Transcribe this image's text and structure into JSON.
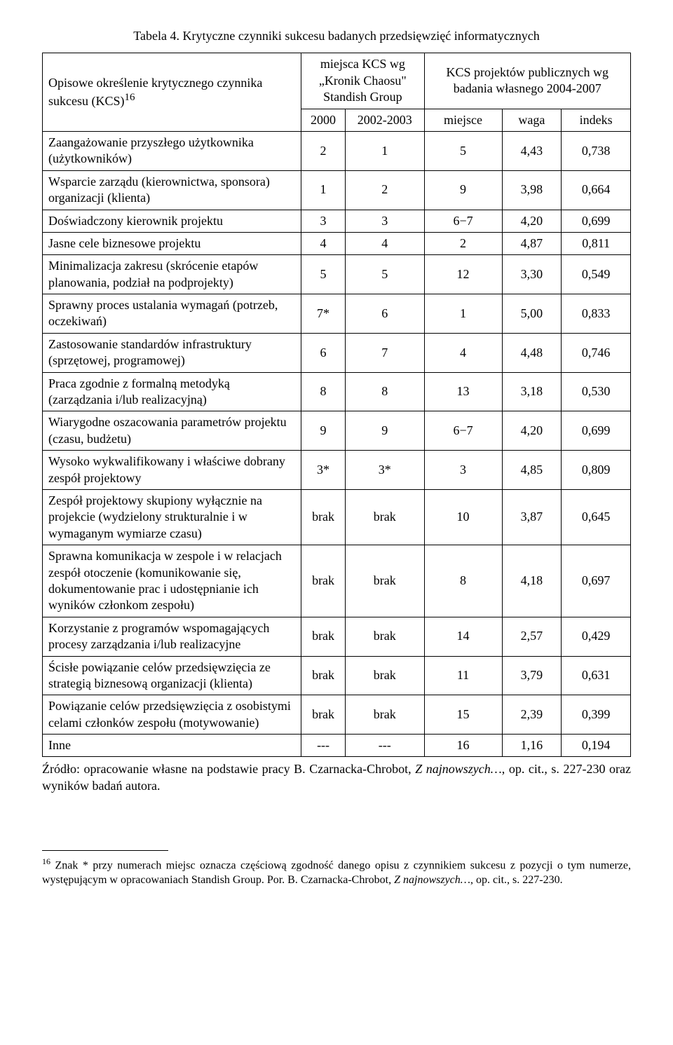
{
  "caption": "Tabela 4. Krytyczne czynniki sukcesu badanych przedsięwzięć informatycznych",
  "header": {
    "rowLabel": "Opisowe określenie krytycznego czynnika sukcesu (KCS)",
    "rowLabelSup": "16",
    "group1_line1": "miejsca KCS wg",
    "group1_line2": "„Kronik Chaosu\"",
    "group1_line3": "Standish Group",
    "group2_line1": "KCS projektów publicznych wg",
    "group2_line2": "badania własnego 2004-2007",
    "sub_2000": "2000",
    "sub_2002": "2002-2003",
    "sub_miejsce": "miejsce",
    "sub_waga": "waga",
    "sub_indeks": "indeks"
  },
  "rows": [
    {
      "label": "Zaangażowanie przyszłego użytkownika (użytkowników)",
      "c": [
        "2",
        "1",
        "5",
        "4,43",
        "0,738"
      ]
    },
    {
      "label": "Wsparcie zarządu (kierownictwa, sponsora) organizacji (klienta)",
      "c": [
        "1",
        "2",
        "9",
        "3,98",
        "0,664"
      ]
    },
    {
      "label": "Doświadczony kierownik projektu",
      "c": [
        "3",
        "3",
        "6−7",
        "4,20",
        "0,699"
      ]
    },
    {
      "label": "Jasne cele biznesowe projektu",
      "c": [
        "4",
        "4",
        "2",
        "4,87",
        "0,811"
      ]
    },
    {
      "label": "Minimalizacja zakresu (skrócenie etapów planowania, podział na podprojekty)",
      "c": [
        "5",
        "5",
        "12",
        "3,30",
        "0,549"
      ]
    },
    {
      "label": "Sprawny proces ustalania wymagań (potrzeb, oczekiwań)",
      "c": [
        "7*",
        "6",
        "1",
        "5,00",
        "0,833"
      ]
    },
    {
      "label": "Zastosowanie standardów infrastruktury (sprzętowej, programowej)",
      "c": [
        "6",
        "7",
        "4",
        "4,48",
        "0,746"
      ]
    },
    {
      "label": "Praca zgodnie z formalną metodyką (zarządzania i/lub realizacyjną)",
      "c": [
        "8",
        "8",
        "13",
        "3,18",
        "0,530"
      ]
    },
    {
      "label": "Wiarygodne oszacowania parametrów projektu (czasu, budżetu)",
      "c": [
        "9",
        "9",
        "6−7",
        "4,20",
        "0,699"
      ]
    },
    {
      "label": "Wysoko wykwalifikowany i właściwe dobrany zespół projektowy",
      "c": [
        "3*",
        "3*",
        "3",
        "4,85",
        "0,809"
      ]
    },
    {
      "label": "Zespół projektowy skupiony wyłącznie na projekcie (wydzielony strukturalnie i w wymaganym wymiarze czasu)",
      "c": [
        "brak",
        "brak",
        "10",
        "3,87",
        "0,645"
      ]
    },
    {
      "label": "Sprawna komunikacja w zespole i w relacjach zespół otoczenie (komunikowanie się, dokumentowanie prac i udostępnianie ich wyników członkom zespołu)",
      "c": [
        "brak",
        "brak",
        "8",
        "4,18",
        "0,697"
      ]
    },
    {
      "label": "Korzystanie z programów wspomagających procesy zarządzania i/lub realizacyjne",
      "c": [
        "brak",
        "brak",
        "14",
        "2,57",
        "0,429"
      ]
    },
    {
      "label": "Ścisłe powiązanie celów przedsięwzięcia ze strategią biznesową organizacji (klienta)",
      "c": [
        "brak",
        "brak",
        "11",
        "3,79",
        "0,631"
      ]
    },
    {
      "label": "Powiązanie celów przedsięwzięcia z osobistymi celami członków zespołu (motywowanie)",
      "c": [
        "brak",
        "brak",
        "15",
        "2,39",
        "0,399"
      ]
    },
    {
      "label": "Inne",
      "c": [
        "---",
        "---",
        "16",
        "1,16",
        "0,194"
      ]
    }
  ],
  "source": {
    "prefix": "Źródło: opracowanie własne na podstawie pracy B. Czarnacka-Chrobot, ",
    "italic": "Z najnowszych…",
    "suffix": ", op. cit., s. 227-230 oraz wyników badań autora."
  },
  "footnote": {
    "sup": "16",
    "prefix": " Znak * przy numerach miejsc oznacza częściową zgodność danego opisu z czynnikiem sukcesu z pozycji o tym numerze, występującym w opracowaniach Standish Group. Por. B. Czarnacka-Chrobot, ",
    "italic": "Z najnowszych…",
    "suffix": ", op. cit., s. 227-230."
  }
}
